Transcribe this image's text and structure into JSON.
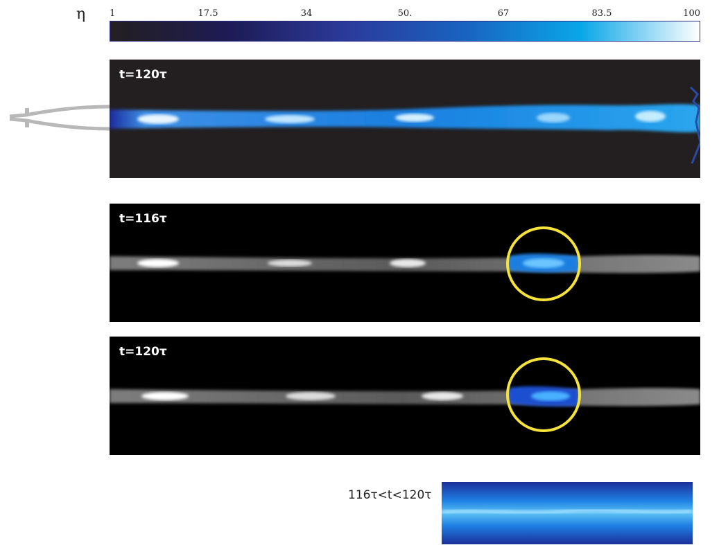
{
  "colorbar": {
    "symbol": "η",
    "ticks": [
      "1",
      "17.5",
      "34",
      "50.",
      "67",
      "83.5",
      "100"
    ],
    "min": 1,
    "max": 100,
    "colors": [
      "#231f20",
      "#1e1b55",
      "#2b3a9a",
      "#1a62c0",
      "#0aa7e8",
      "#ffffff"
    ]
  },
  "panels": [
    {
      "label": "t=120τ",
      "style": "color",
      "highlight": false
    },
    {
      "label": "t=116τ",
      "style": "grayscale-highlight",
      "highlight": true
    },
    {
      "label": "t=120τ",
      "style": "grayscale-highlight",
      "highlight": true
    }
  ],
  "average": {
    "label": "116τ<t<120τ"
  },
  "colors": {
    "highlight_circle": "#f5e23a",
    "panel_bg_top": "#231f20",
    "panel_bg": "#000000",
    "jet_blue": "#1a7fe0"
  },
  "icons": {
    "nozzle": "nozzle-outline-icon"
  }
}
